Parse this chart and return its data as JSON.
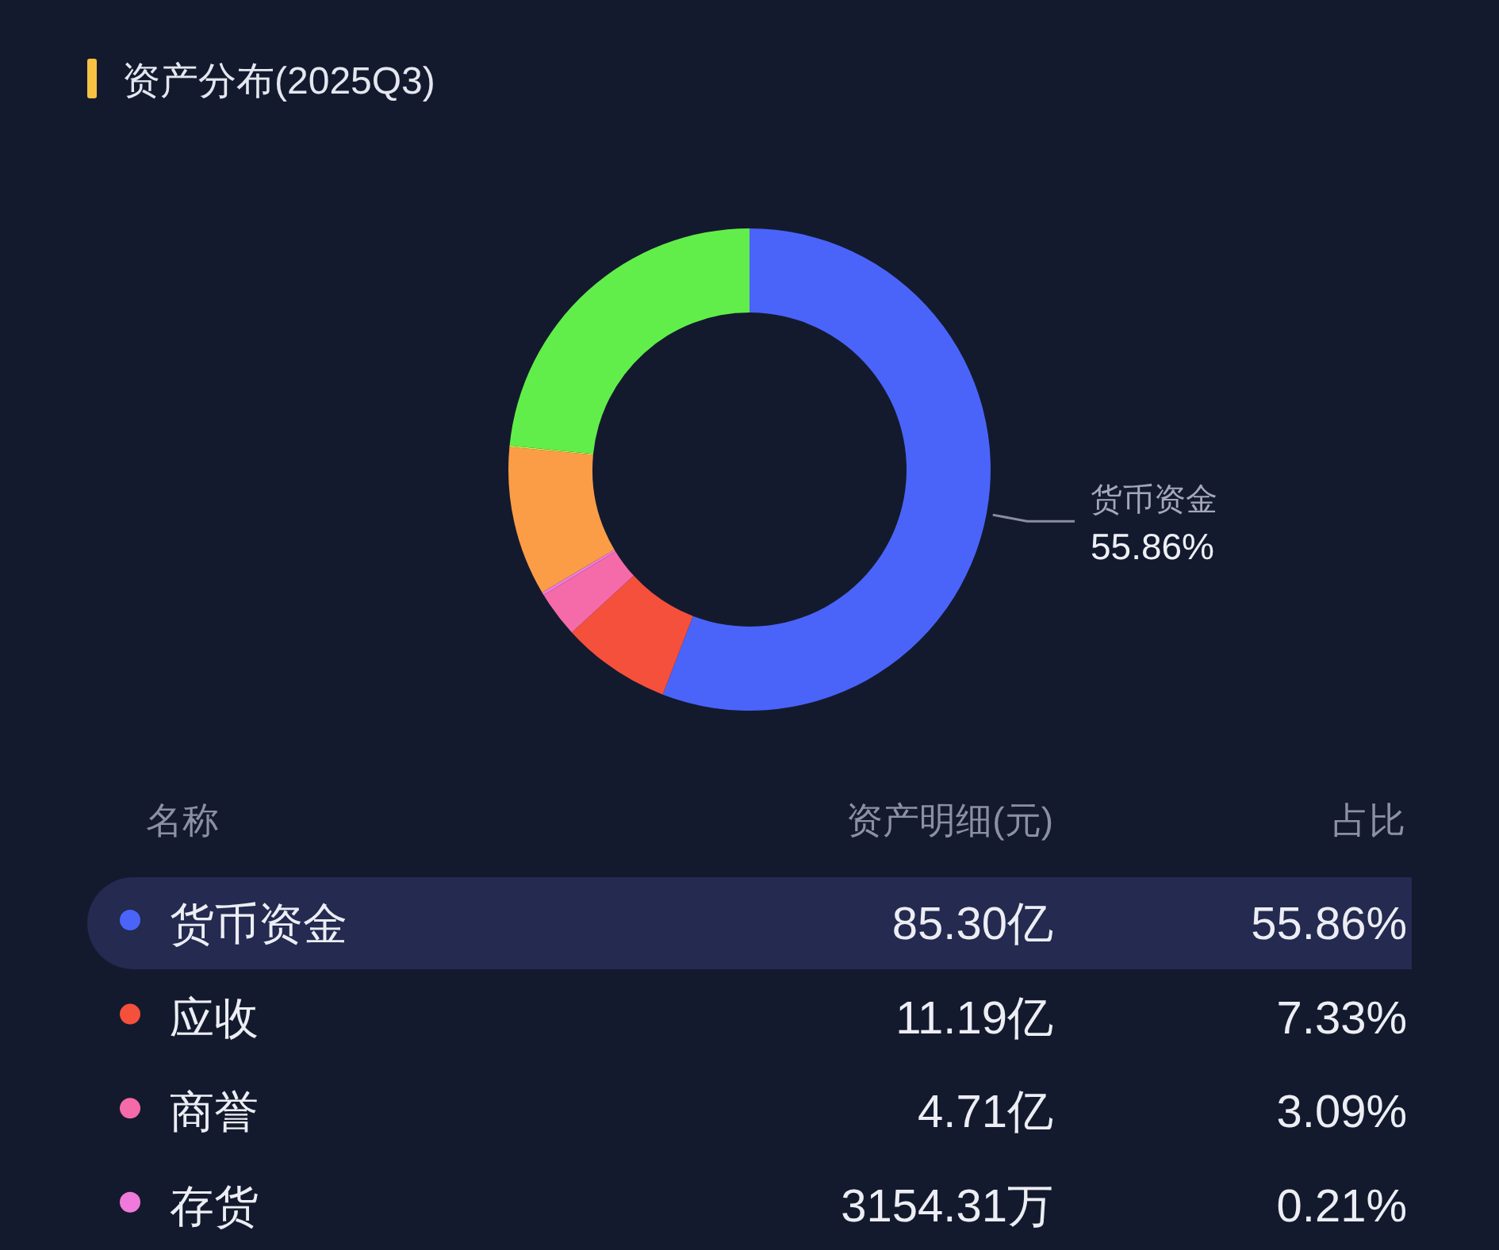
{
  "chart_data": {
    "type": "donut",
    "title": "资产分布(2025Q3)",
    "categories": [
      "货币资金",
      "应收",
      "商誉",
      "存货",
      null,
      null,
      null
    ],
    "values": [
      55.86,
      7.33,
      3.09,
      0.21,
      10.0,
      0.1,
      23.41
    ],
    "colors": [
      "#4a64fa",
      "#f5503c",
      "#f56aa8",
      "#f07adc",
      "#fb9d47",
      "#e3e64a",
      "#62ee4a"
    ],
    "value_labels": [
      "55.86%",
      "7.33%",
      "3.09%",
      "0.21%",
      null,
      null,
      null
    ],
    "legend": "bottom",
    "annotations": [
      "名称",
      "资产明细(元)",
      "占比",
      "85.30亿",
      "11.19亿",
      "4.71亿",
      "3154.31万"
    ]
  }
}
